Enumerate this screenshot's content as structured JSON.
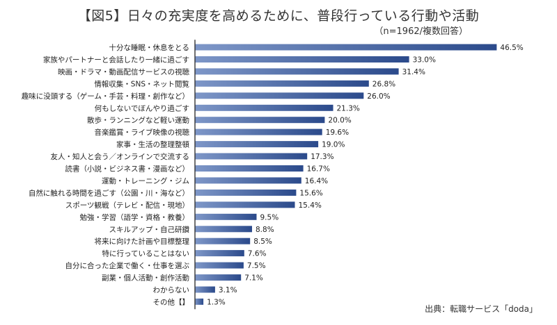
{
  "title": "【図5】日々の充実度を高めるために、普段行っている行動や活動",
  "subtitle": "（n=1962/複数回答）",
  "source": "出典：転職サービス「doda」",
  "colors": {
    "bar_dark": "#2b4a8b",
    "bar_light": "#7e97c8",
    "axis": "#333333"
  },
  "chart_data": {
    "type": "bar",
    "orientation": "horizontal",
    "unit": "%",
    "categories": [
      "十分な睡眠・休息をとる",
      "家族やパートナーと会話したり一緒に過ごす",
      "映画・ドラマ・動画配信サービスの視聴",
      "情報収集・SNS・ネット閲覧",
      "趣味に没頭する（ゲーム・手芸・料理・創作など）",
      "何もしないでぼんやり過ごす",
      "散歩・ランニングなど軽い運動",
      "音楽鑑賞・ライブ映像の視聴",
      "家事・生活の整理整頓",
      "友人・知人と会う／オンラインで交流する",
      "読書（小説・ビジネス書・漫画など）",
      "運動・トレーニング・ジム",
      "自然に触れる時間を過ごす（公園・川・海など）",
      "スポーツ観戦（テレビ・配信・現地）",
      "勉強・学習（語学・資格・教養）",
      "スキルアップ・自己研鑽",
      "将来に向けた計画や目標整理",
      "特に行っていることはない",
      "自分に合った企業で働く・仕事を選ぶ",
      "副業・個人活動・創作活動",
      "わからない",
      "その他【】"
    ],
    "values": [
      46.5,
      33.0,
      31.4,
      26.8,
      26.0,
      21.3,
      20.0,
      19.6,
      19.0,
      17.3,
      16.7,
      16.4,
      15.6,
      15.4,
      9.5,
      8.8,
      8.5,
      7.6,
      7.5,
      7.1,
      3.1,
      1.3
    ],
    "value_labels": [
      "46.5%",
      "33.0%",
      "31.4%",
      "26.8%",
      "26.0%",
      "21.3%",
      "20.0%",
      "19.6%",
      "19.0%",
      "17.3%",
      "16.7%",
      "16.4%",
      "15.6%",
      "15.4%",
      "9.5%",
      "8.8%",
      "8.5%",
      "7.6%",
      "7.5%",
      "7.1%",
      "3.1%",
      "1.3%"
    ],
    "xlim": [
      0,
      50
    ],
    "grid": false,
    "legend": "none"
  }
}
